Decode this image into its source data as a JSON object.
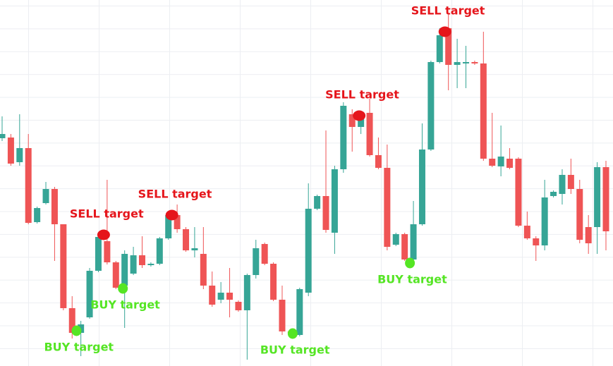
{
  "chart_data": {
    "type": "candlestick",
    "up_color": "#36a596",
    "down_color": "#ef5455",
    "ylim": [
      0,
      519
    ],
    "grid": true,
    "open": [
      323,
      324,
      289,
      309,
      204,
      231,
      251,
      201,
      82,
      47,
      69,
      135,
      177,
      147,
      114,
      131,
      157,
      143,
      145,
      181,
      214,
      194,
      164,
      159,
      114,
      94,
      104,
      91,
      79,
      129,
      173,
      145,
      94,
      49,
      44,
      104,
      223,
      241,
      189,
      279,
      357,
      339,
      359,
      299,
      281,
      172,
      187,
      151,
      201,
      307,
      431,
      479,
      427,
      429,
      431,
      429,
      294,
      283,
      294,
      294,
      199,
      181,
      171,
      241,
      244,
      271,
      251,
      197,
      197,
      282
    ],
    "high": [
      354,
      329,
      357,
      329,
      226,
      261,
      254,
      201,
      99,
      64,
      139,
      185,
      264,
      149,
      164,
      169,
      184,
      147,
      183,
      219,
      229,
      197,
      197,
      197,
      134,
      119,
      139,
      93,
      131,
      179,
      175,
      147,
      114,
      51,
      111,
      259,
      243,
      334,
      284,
      374,
      364,
      361,
      379,
      324,
      314,
      189,
      189,
      234,
      344,
      433,
      479,
      499,
      464,
      454,
      433,
      474,
      359,
      341,
      309,
      296,
      219,
      184,
      264,
      249,
      279,
      294,
      264,
      214,
      289,
      291
    ],
    "low": [
      319,
      284,
      284,
      201,
      202,
      229,
      149,
      79,
      39,
      14,
      67,
      133,
      144,
      109,
      54,
      129,
      139,
      141,
      143,
      179,
      189,
      162,
      154,
      109,
      84,
      89,
      69,
      77,
      9,
      124,
      143,
      92,
      44,
      45,
      42,
      99,
      221,
      189,
      159,
      274,
      304,
      329,
      297,
      279,
      164,
      170,
      149,
      149,
      199,
      305,
      429,
      391,
      394,
      394,
      427,
      291,
      282,
      269,
      279,
      197,
      179,
      149,
      164,
      239,
      229,
      244,
      174,
      159,
      159,
      164
    ],
    "close": [
      329,
      287,
      309,
      203,
      224,
      251,
      201,
      82,
      47,
      59,
      135,
      183,
      147,
      111,
      159,
      157,
      143,
      145,
      181,
      214,
      194,
      164,
      167,
      114,
      87,
      104,
      94,
      79,
      129,
      167,
      145,
      94,
      49,
      47,
      109,
      223,
      241,
      193,
      279,
      369,
      339,
      354,
      299,
      281,
      169,
      187,
      151,
      201,
      307,
      431,
      469,
      427,
      431,
      431,
      429,
      294,
      284,
      297,
      281,
      199,
      181,
      171,
      239,
      247,
      271,
      251,
      179,
      174,
      282,
      191
    ],
    "annotations": [
      {
        "text": "SELL target",
        "x": 11.6,
        "y": 186,
        "color": "#e5151b",
        "kind": "sell"
      },
      {
        "text": "SELL target",
        "x": 19.4,
        "y": 214,
        "color": "#e5151b",
        "kind": "sell"
      },
      {
        "text": "SELL target",
        "x": 40.8,
        "y": 355,
        "color": "#e5151b",
        "kind": "sell"
      },
      {
        "text": "SELL target",
        "x": 50.6,
        "y": 474,
        "color": "#e5151b",
        "kind": "sell"
      },
      {
        "text": "BUY target",
        "x": 8.5,
        "y": 50,
        "color": "#55e524",
        "kind": "buy"
      },
      {
        "text": "BUY target",
        "x": 13.8,
        "y": 110,
        "color": "#55e524",
        "kind": "buy"
      },
      {
        "text": "BUY target",
        "x": 33.2,
        "y": 46,
        "color": "#55e524",
        "kind": "buy"
      },
      {
        "text": "BUY target",
        "x": 46.6,
        "y": 146,
        "color": "#55e524",
        "kind": "buy"
      }
    ]
  }
}
